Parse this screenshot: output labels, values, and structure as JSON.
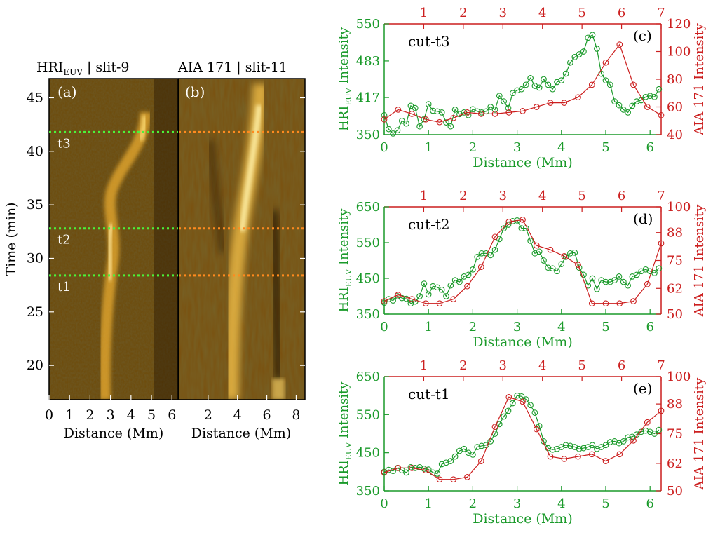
{
  "colors": {
    "hri": "#1a9a2a",
    "aia": "#cc1f1f",
    "guide_hri": "#4cf23a",
    "guide_aia": "#ff8a1e",
    "colormap_dark": "#1a0e00",
    "colormap_mid": "#9a6a10",
    "colormap_bright": "#fff2b0"
  },
  "left_panels": {
    "ylabel": "Time (min)",
    "yticks": [
      "20",
      "25",
      "30",
      "35",
      "40",
      "45"
    ],
    "ylim": [
      16.8,
      46.8
    ],
    "a": {
      "tag": "(a)",
      "title_main": "HRI",
      "title_sub": "EUV",
      "title_rest": " | slit-9",
      "xlabel": "Distance (Mm)",
      "xticks": [
        "0",
        "1",
        "2",
        "3",
        "4",
        "5",
        "6"
      ],
      "xlim": [
        0,
        6.3
      ]
    },
    "b": {
      "tag": "(b)",
      "title": "AIA 171 | slit-11",
      "xlabel": "Distance (Mm)",
      "xticks": [
        "2",
        "4",
        "6",
        "8"
      ],
      "xlim": [
        0,
        8.6
      ]
    },
    "markers": [
      {
        "label": "t3",
        "time": 41.8
      },
      {
        "label": "t2",
        "time": 32.8
      },
      {
        "label": "t1",
        "time": 28.4
      }
    ]
  },
  "chart_data": [
    {
      "type": "line",
      "panel": "(c)",
      "annotation": "cut-t3",
      "xlabel": "Distance (Mm)",
      "ylabel_main": "HRI",
      "ylabel_sub": "EUV",
      "ylabel_rest": " Intensity",
      "y2label": "AIA 171 Intensity",
      "xlim": [
        0,
        6.25
      ],
      "ylim": [
        350,
        550
      ],
      "x2lim": [
        0,
        7
      ],
      "y2lim": [
        40,
        120
      ],
      "xticks": [
        "0",
        "1",
        "2",
        "3",
        "4",
        "5",
        "6"
      ],
      "yticks": [
        "350",
        "417",
        "483",
        "550"
      ],
      "x2ticks": [
        "1",
        "2",
        "3",
        "4",
        "5",
        "6",
        "7"
      ],
      "y2ticks": [
        "40",
        "60",
        "80",
        "100",
        "120"
      ],
      "series": [
        {
          "axis": "primary",
          "x": [
            0.0,
            0.1,
            0.2,
            0.3,
            0.4,
            0.5,
            0.6,
            0.7,
            0.8,
            0.9,
            1.0,
            1.1,
            1.2,
            1.3,
            1.4,
            1.5,
            1.6,
            1.7,
            1.8,
            1.9,
            2.0,
            2.1,
            2.2,
            2.3,
            2.4,
            2.5,
            2.6,
            2.7,
            2.8,
            2.9,
            3.0,
            3.1,
            3.2,
            3.3,
            3.4,
            3.5,
            3.6,
            3.7,
            3.8,
            3.9,
            4.0,
            4.1,
            4.2,
            4.3,
            4.4,
            4.5,
            4.6,
            4.7,
            4.8,
            4.9,
            5.0,
            5.1,
            5.2,
            5.3,
            5.4,
            5.5,
            5.6,
            5.7,
            5.8,
            5.9,
            6.0,
            6.1,
            6.2
          ],
          "values": [
            385,
            360,
            352,
            358,
            375,
            370,
            402,
            398,
            365,
            378,
            405,
            393,
            392,
            390,
            372,
            365,
            395,
            387,
            390,
            385,
            396,
            392,
            390,
            392,
            400,
            395,
            420,
            410,
            398,
            425,
            430,
            432,
            440,
            452,
            438,
            435,
            450,
            440,
            432,
            445,
            448,
            460,
            480,
            490,
            495,
            500,
            525,
            530,
            505,
            460,
            448,
            440,
            410,
            403,
            395,
            390,
            402,
            410,
            412,
            418,
            420,
            418,
            432
          ]
        },
        {
          "axis": "secondary",
          "x": [
            0.0,
            0.35,
            0.7,
            1.05,
            1.4,
            1.75,
            2.1,
            2.45,
            2.8,
            3.15,
            3.5,
            3.85,
            4.2,
            4.55,
            4.9,
            5.25,
            5.6,
            5.95,
            6.3,
            6.65,
            7.0
          ],
          "values": [
            51,
            58,
            55,
            51,
            49,
            52,
            56,
            55,
            55,
            56,
            57,
            60,
            63,
            63,
            67,
            76,
            92,
            105,
            76,
            60,
            54
          ]
        }
      ]
    },
    {
      "type": "line",
      "panel": "(d)",
      "annotation": "cut-t2",
      "xlabel": "Distance (Mm)",
      "ylabel_main": "HRI",
      "ylabel_sub": "EUV",
      "ylabel_rest": " Intensity",
      "y2label": "AIA 171 Intensity",
      "xlim": [
        0,
        6.25
      ],
      "ylim": [
        350,
        650
      ],
      "x2lim": [
        0,
        7
      ],
      "y2lim": [
        50,
        100
      ],
      "xticks": [
        "0",
        "1",
        "2",
        "3",
        "4",
        "5",
        "6"
      ],
      "yticks": [
        "350",
        "450",
        "550",
        "650"
      ],
      "x2ticks": [
        "1",
        "2",
        "3",
        "4",
        "5",
        "6",
        "7"
      ],
      "y2ticks": [
        "50",
        "62",
        "75",
        "88",
        "100"
      ],
      "series": [
        {
          "axis": "primary",
          "x": [
            0.0,
            0.1,
            0.2,
            0.3,
            0.4,
            0.5,
            0.6,
            0.7,
            0.8,
            0.9,
            1.0,
            1.1,
            1.2,
            1.3,
            1.4,
            1.5,
            1.6,
            1.7,
            1.8,
            1.9,
            2.0,
            2.1,
            2.2,
            2.3,
            2.4,
            2.5,
            2.6,
            2.7,
            2.8,
            2.9,
            3.0,
            3.1,
            3.2,
            3.3,
            3.4,
            3.5,
            3.6,
            3.7,
            3.8,
            3.9,
            4.0,
            4.1,
            4.2,
            4.3,
            4.4,
            4.5,
            4.6,
            4.7,
            4.8,
            4.9,
            5.0,
            5.1,
            5.2,
            5.3,
            5.4,
            5.5,
            5.6,
            5.7,
            5.8,
            5.9,
            6.0,
            6.1,
            6.2
          ],
          "values": [
            382,
            392,
            388,
            400,
            395,
            393,
            380,
            385,
            400,
            435,
            405,
            428,
            425,
            418,
            400,
            430,
            445,
            440,
            455,
            460,
            475,
            510,
            520,
            520,
            515,
            530,
            560,
            590,
            600,
            610,
            612,
            590,
            590,
            555,
            520,
            525,
            500,
            480,
            478,
            470,
            490,
            510,
            520,
            522,
            480,
            460,
            430,
            450,
            420,
            445,
            440,
            440,
            445,
            455,
            440,
            430,
            455,
            460,
            470,
            475,
            470,
            465,
            478
          ]
        },
        {
          "axis": "secondary",
          "x": [
            0.0,
            0.35,
            0.7,
            1.05,
            1.4,
            1.75,
            2.1,
            2.45,
            2.8,
            3.15,
            3.5,
            3.85,
            4.2,
            4.55,
            4.9,
            5.25,
            5.6,
            5.95,
            6.3,
            6.65,
            7.0
          ],
          "values": [
            56,
            59,
            57,
            55,
            55,
            57,
            63,
            72,
            86,
            93,
            94,
            82,
            80,
            77,
            73,
            55,
            55,
            55,
            56,
            64,
            83
          ]
        }
      ]
    },
    {
      "type": "line",
      "panel": "(e)",
      "annotation": "cut-t1",
      "xlabel": "Distance (Mm)",
      "ylabel_main": "HRI",
      "ylabel_sub": "EUV",
      "ylabel_rest": " Intensity",
      "y2label": "AIA 171 Intensity",
      "xlim": [
        0,
        6.25
      ],
      "ylim": [
        350,
        650
      ],
      "x2lim": [
        0,
        7
      ],
      "y2lim": [
        50,
        100
      ],
      "xticks": [
        "0",
        "1",
        "2",
        "3",
        "4",
        "5",
        "6"
      ],
      "yticks": [
        "350",
        "450",
        "550",
        "650"
      ],
      "x2ticks": [
        "1",
        "2",
        "3",
        "4",
        "5",
        "6",
        "7"
      ],
      "y2ticks": [
        "50",
        "62",
        "75",
        "88",
        "100"
      ],
      "series": [
        {
          "axis": "primary",
          "x": [
            0.0,
            0.1,
            0.2,
            0.3,
            0.4,
            0.5,
            0.6,
            0.7,
            0.8,
            0.9,
            1.0,
            1.1,
            1.2,
            1.3,
            1.4,
            1.5,
            1.6,
            1.7,
            1.8,
            1.9,
            2.0,
            2.1,
            2.2,
            2.3,
            2.4,
            2.5,
            2.6,
            2.7,
            2.8,
            2.9,
            3.0,
            3.1,
            3.2,
            3.3,
            3.4,
            3.5,
            3.6,
            3.7,
            3.8,
            3.9,
            4.0,
            4.1,
            4.2,
            4.3,
            4.4,
            4.5,
            4.6,
            4.7,
            4.8,
            4.9,
            5.0,
            5.1,
            5.2,
            5.3,
            5.4,
            5.5,
            5.6,
            5.7,
            5.8,
            5.9,
            6.0,
            6.1,
            6.2
          ],
          "values": [
            400,
            405,
            402,
            410,
            404,
            398,
            412,
            410,
            412,
            408,
            406,
            398,
            395,
            420,
            424,
            428,
            440,
            455,
            460,
            450,
            445,
            465,
            468,
            470,
            480,
            500,
            525,
            545,
            560,
            580,
            600,
            598,
            590,
            575,
            555,
            520,
            480,
            462,
            458,
            460,
            465,
            470,
            468,
            465,
            460,
            462,
            465,
            470,
            460,
            465,
            470,
            478,
            480,
            475,
            480,
            490,
            492,
            498,
            505,
            508,
            505,
            500,
            510
          ]
        },
        {
          "axis": "secondary",
          "x": [
            0.0,
            0.35,
            0.7,
            1.05,
            1.4,
            1.75,
            2.1,
            2.45,
            2.8,
            3.15,
            3.5,
            3.85,
            4.2,
            4.55,
            4.9,
            5.25,
            5.6,
            5.95,
            6.3,
            6.65,
            7.0
          ],
          "values": [
            58,
            60,
            60,
            59,
            55,
            55,
            56,
            63,
            78,
            91,
            89,
            77,
            65,
            64,
            65,
            66,
            63,
            66,
            72,
            80,
            85
          ]
        }
      ]
    }
  ]
}
